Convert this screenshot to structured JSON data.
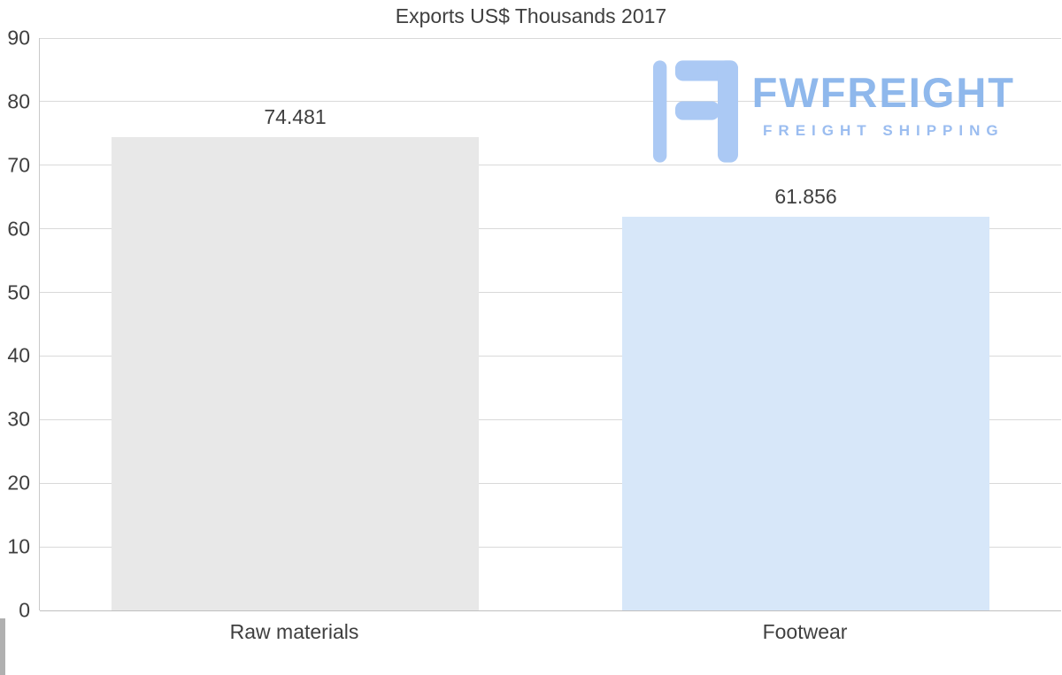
{
  "page": {
    "background": "#ffffff"
  },
  "chart_data": {
    "type": "bar",
    "title": "Exports US$ Thousands 2017",
    "categories": [
      "Raw materials",
      "Footwear"
    ],
    "values": [
      74.481,
      61.856
    ],
    "value_labels": [
      "74.481",
      "61.856"
    ],
    "series": [
      {
        "name": "Exports US$ Thousands 2017",
        "values": [
          74.481,
          61.856
        ]
      }
    ],
    "xlabel": "",
    "ylabel": "",
    "ylim": [
      0,
      90
    ],
    "yticks": [
      0,
      10,
      20,
      30,
      40,
      50,
      60,
      70,
      80,
      90
    ],
    "grid": true,
    "legend": "none",
    "bar_colors": [
      "#e8e8e8",
      "#d7e7f9"
    ],
    "gridline_color": "#d9d9d9",
    "axis_text_color": "#3f3f3f"
  },
  "watermark": {
    "name": "FWFREIGHT",
    "tagline": "FREIGHT SHIPPING",
    "brand_color": "#8fb8ec",
    "tagline_color": "#9bbdf0",
    "icon": "fwfreight-logo-icon",
    "icon_color": "#abc9f4"
  }
}
